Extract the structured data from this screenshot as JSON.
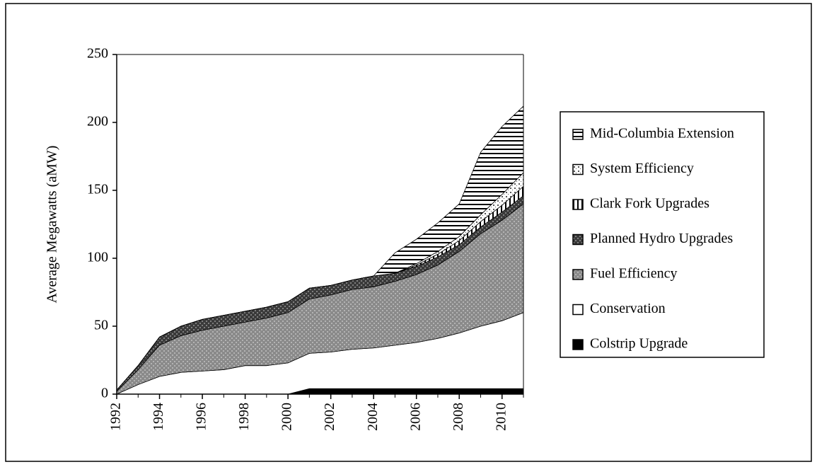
{
  "chart_data": {
    "type": "stacked_area",
    "y_label": "Average Megawatts (aMW)",
    "x": [
      1992,
      1993,
      1994,
      1995,
      1996,
      1997,
      1998,
      1999,
      2000,
      2001,
      2002,
      2003,
      2004,
      2005,
      2006,
      2007,
      2008,
      2009,
      2010,
      2011
    ],
    "xlim": [
      1992,
      2011
    ],
    "xticks": [
      1992,
      1994,
      1996,
      1998,
      2000,
      2002,
      2004,
      2006,
      2008,
      2010
    ],
    "ylim": [
      0,
      250
    ],
    "yticks": [
      0,
      50,
      100,
      150,
      200,
      250
    ],
    "legend": "right",
    "series": [
      {
        "name": "Colstrip Upgrade",
        "color": "#000000",
        "pattern": "solid",
        "values": [
          0,
          0,
          0,
          0,
          0,
          0,
          0,
          0,
          0,
          4,
          4,
          4,
          4,
          4,
          4,
          4,
          4,
          4,
          4,
          4
        ]
      },
      {
        "name": "Conservation",
        "color": "#ffffff",
        "pattern": "solid",
        "values": [
          0,
          7,
          13,
          16,
          17,
          18,
          21,
          21,
          23,
          26,
          27,
          29,
          30,
          32,
          34,
          37,
          41,
          46,
          50,
          56
        ]
      },
      {
        "name": "Fuel Efficiency",
        "color": "#8a8a8a",
        "pattern": "dots",
        "values": [
          2,
          11,
          23,
          27,
          30,
          32,
          32,
          35,
          37,
          40,
          42,
          44,
          45,
          47,
          50,
          54,
          60,
          68,
          74,
          80
        ]
      },
      {
        "name": "Planned Hydro Upgrades",
        "color": "#3a3a3a",
        "pattern": "dots",
        "values": [
          1,
          3,
          6,
          7,
          8,
          8,
          8,
          8,
          8,
          8,
          7,
          7,
          8,
          6,
          6,
          6,
          5,
          5,
          6,
          6
        ]
      },
      {
        "name": "Clark Fork Upgrades",
        "color": "#000000",
        "pattern": "vstripes",
        "values": [
          0,
          0,
          0,
          0,
          0,
          0,
          0,
          0,
          0,
          0,
          0,
          0,
          0,
          0,
          1,
          2,
          3,
          4,
          5,
          7
        ]
      },
      {
        "name": "System Efficiency",
        "color": "#555555",
        "pattern": "sparse",
        "values": [
          0,
          0,
          0,
          0,
          0,
          0,
          0,
          0,
          0,
          0,
          0,
          0,
          0,
          0,
          1,
          2,
          3,
          5,
          8,
          10
        ]
      },
      {
        "name": "Mid-Columbia Extension",
        "color": "#000000",
        "pattern": "hstripes",
        "values": [
          0,
          0,
          0,
          0,
          0,
          0,
          0,
          0,
          0,
          0,
          0,
          0,
          0,
          15,
          18,
          21,
          24,
          46,
          50,
          49
        ]
      }
    ]
  }
}
